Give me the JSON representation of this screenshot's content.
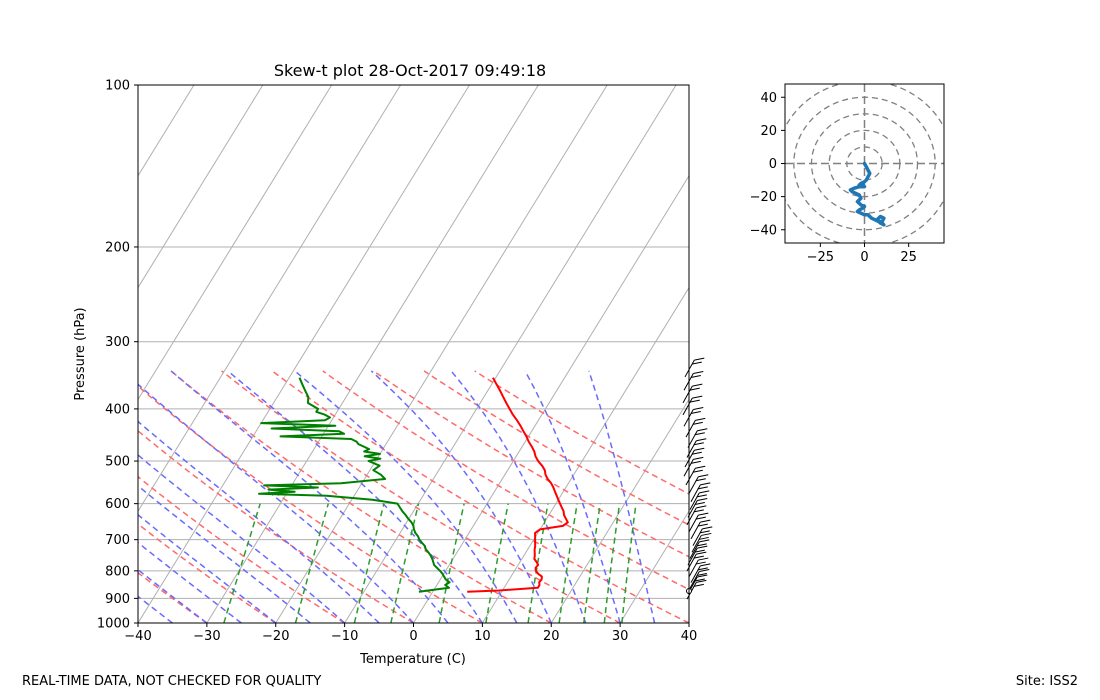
{
  "footer": {
    "quality_note": "REAL-TIME DATA, NOT CHECKED FOR QUALITY",
    "site": "Site: ISS2"
  },
  "chart_data": [
    {
      "type": "line",
      "subtype": "skew-t",
      "title": "Skew-t plot 28-Oct-2017 09:49:18",
      "xlabel": "Temperature (C)",
      "ylabel": "Pressure (hPa)",
      "xlim": [
        -40,
        40
      ],
      "ylim": [
        1000,
        100
      ],
      "yscale": "log",
      "xticks": [
        -40,
        -30,
        -20,
        -10,
        0,
        10,
        20,
        30,
        40
      ],
      "yticks": [
        100,
        200,
        300,
        400,
        500,
        600,
        700,
        800,
        900,
        1000
      ],
      "grid": true,
      "colors": {
        "temperature": "#ff0000",
        "dewpoint": "#008000",
        "dry_adiabats": "#ff6a6a",
        "moist_adiabats": "#6a6aff",
        "mixing_ratio": "#2e9b2e",
        "isotherms": "#b0b0b0",
        "wind_barbs": "#000000"
      },
      "series": [
        {
          "key": "temperature",
          "pressure": [
            875,
            870,
            860,
            850,
            840,
            830,
            820,
            810,
            800,
            790,
            780,
            770,
            760,
            750,
            740,
            730,
            720,
            710,
            700,
            690,
            680,
            670,
            660,
            650,
            640,
            630,
            620,
            610,
            600,
            590,
            580,
            570,
            560,
            550,
            540,
            530,
            520,
            510,
            500,
            490,
            480,
            470,
            460,
            450,
            440,
            430,
            420,
            410,
            400,
            390,
            380,
            370,
            360,
            350
          ],
          "values": [
            5.0,
            9.5,
            14.9,
            14.9,
            14.6,
            14.7,
            14.5,
            13.7,
            13.1,
            12.8,
            12.9,
            12.4,
            11.8,
            11.6,
            11.3,
            11.0,
            10.8,
            10.5,
            10.2,
            9.9,
            9.6,
            10.0,
            13.0,
            13.4,
            12.8,
            12.2,
            11.8,
            11.2,
            10.6,
            10.0,
            9.4,
            8.8,
            8.2,
            7.5,
            6.6,
            5.9,
            5.4,
            4.6,
            3.6,
            2.8,
            2.2,
            1.4,
            0.5,
            -0.3,
            -1.2,
            -2.1,
            -3.1,
            -4.2,
            -5.2,
            -6.2,
            -7.2,
            -8.2,
            -9.3,
            -10.4
          ]
        },
        {
          "key": "dewpoint",
          "pressure": [
            875,
            860,
            850,
            840,
            830,
            820,
            810,
            800,
            790,
            780,
            770,
            760,
            750,
            740,
            730,
            720,
            710,
            700,
            690,
            680,
            670,
            660,
            650,
            640,
            630,
            620,
            610,
            600,
            590,
            580,
            575,
            570,
            565,
            560,
            555,
            550,
            540,
            530,
            520,
            510,
            500,
            495,
            490,
            485,
            480,
            475,
            470,
            465,
            460,
            455,
            450,
            445,
            440,
            435,
            430,
            425,
            420,
            415,
            410,
            405,
            400,
            390,
            380,
            370,
            360,
            350
          ],
          "values": [
            -2.0,
            2.0,
            1.2,
            1.6,
            0.8,
            0.3,
            -0.2,
            -0.8,
            -1.5,
            -2.2,
            -2.6,
            -3.0,
            -3.5,
            -4.1,
            -4.8,
            -5.2,
            -5.9,
            -6.6,
            -7.1,
            -7.8,
            -8.3,
            -8.7,
            -9.3,
            -10.1,
            -10.8,
            -11.6,
            -12.3,
            -13.0,
            -17.0,
            -24.0,
            -34.0,
            -29.0,
            -33.0,
            -26.0,
            -34.0,
            -23.0,
            -17.0,
            -18.0,
            -19.5,
            -19.0,
            -21.0,
            -19.5,
            -22.0,
            -20.0,
            -22.5,
            -22.0,
            -23.0,
            -24.0,
            -24.5,
            -25.5,
            -36.0,
            -27.0,
            -28.0,
            -38.0,
            -29.0,
            -40.0,
            -31.0,
            -30.5,
            -31.5,
            -33.0,
            -33.0,
            -35.0,
            -35.5,
            -36.5,
            -37.5,
            -38.5
          ]
        }
      ]
    },
    {
      "type": "line",
      "subtype": "hodograph",
      "xlim": [
        -45,
        45
      ],
      "ylim": [
        -48,
        48
      ],
      "xticks": [
        -25,
        0,
        25
      ],
      "yticks": [
        -40,
        -20,
        0,
        20,
        40
      ],
      "rings": [
        10,
        20,
        30,
        40,
        50
      ],
      "color": "#1f77b4",
      "u": [
        0,
        1,
        2,
        3,
        2,
        1,
        0,
        -2,
        -3,
        -1,
        0,
        -3,
        -6,
        -8,
        -7,
        -5,
        -3,
        -2,
        -3,
        -4,
        -2,
        0,
        -1,
        -3,
        -4,
        -2,
        0,
        2,
        4,
        6,
        8,
        10,
        11,
        9,
        7,
        9,
        11,
        10,
        8,
        6
      ],
      "v": [
        0,
        -2,
        -4,
        -6,
        -8,
        -10,
        -11,
        -12,
        -13,
        -13,
        -14,
        -14,
        -15,
        -16,
        -17,
        -18,
        -19,
        -21,
        -22,
        -23,
        -25,
        -26,
        -27,
        -28,
        -29,
        -30,
        -31,
        -31,
        -33,
        -34,
        -35,
        -35,
        -33,
        -32,
        -34,
        -36,
        -37,
        -36,
        -35,
        -34
      ]
    }
  ]
}
